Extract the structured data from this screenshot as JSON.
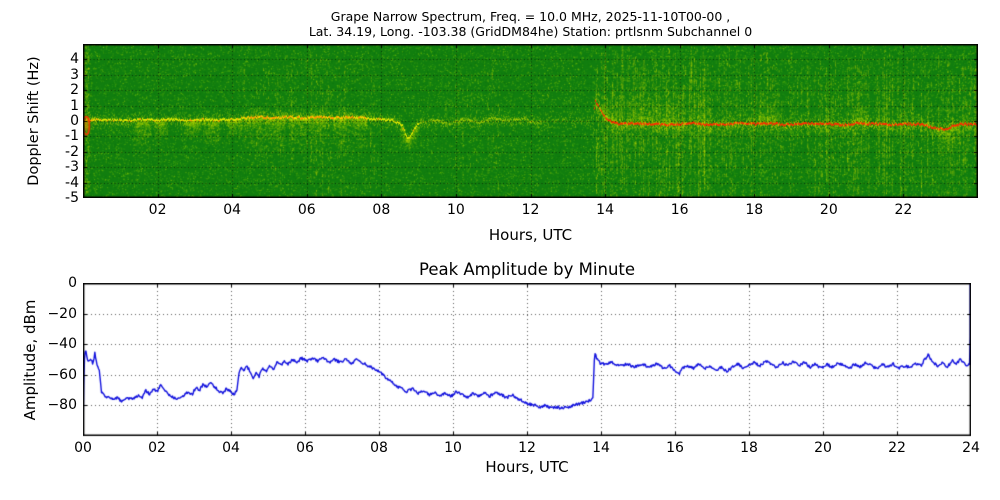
{
  "station_info": {
    "frequency": "10.0 MHz",
    "date": "2025-11-10T00-00",
    "lat": "34.19",
    "long": "-103.38",
    "grid": "DM84he",
    "station": "prtlsnm",
    "subchannel": "0"
  },
  "colors": {
    "figure_bg": "#ffffff",
    "spectrogram_bg": "#117e0f",
    "trace_yellow": "#e8ee00",
    "trace_orange": "#ff9500",
    "trace_red": "#ff2a00",
    "amplitude_line": "#1111dd",
    "grid": "#000000",
    "text": "#000000"
  },
  "chart_data": [
    {
      "type": "heatmap",
      "title": "Grape Narrow Spectrum, Freq. = 10.0 MHz, 2025-11-10T00-00 ,",
      "subtitle": "Lat. 34.19, Long. -103.38 (GridDM84he) Station: prtlsnm Subchannel 0",
      "xlabel": "Hours, UTC",
      "ylabel": "Doppler Shift (Hz)",
      "xlim": [
        0,
        24
      ],
      "ylim": [
        -5,
        5
      ],
      "xtick_values": [
        2,
        4,
        6,
        8,
        10,
        12,
        14,
        16,
        18,
        20,
        22
      ],
      "xtick_labels": [
        "02",
        "04",
        "06",
        "08",
        "10",
        "12",
        "14",
        "16",
        "18",
        "20",
        "22"
      ],
      "ytick_values": [
        4,
        3,
        2,
        1,
        0,
        -1,
        -2,
        -3,
        -4,
        -5
      ],
      "ytick_labels": [
        "4",
        "3",
        "2",
        "1",
        "0",
        "-1",
        "-2",
        "-3",
        "-4",
        "-5"
      ],
      "grid": "dotted",
      "legend": "none",
      "style": {
        "bg": "#117e0f",
        "speckle": [
          "#0c700c",
          "#1d8a10",
          "#2f9a12",
          "#47ab0e",
          "#64bc08",
          "#8ccb04"
        ]
      },
      "carrier_trace": [
        [
          0.0,
          0.0
        ],
        [
          0.3,
          0.1
        ],
        [
          0.8,
          0.05
        ],
        [
          1.2,
          0.0
        ],
        [
          1.6,
          0.1
        ],
        [
          2.0,
          0.05
        ],
        [
          2.4,
          0.1
        ],
        [
          2.8,
          0.0
        ],
        [
          3.2,
          0.1
        ],
        [
          3.6,
          0.05
        ],
        [
          4.0,
          0.1
        ],
        [
          4.3,
          0.2
        ],
        [
          4.7,
          0.25
        ],
        [
          5.1,
          0.2
        ],
        [
          5.5,
          0.25
        ],
        [
          5.9,
          0.2
        ],
        [
          6.3,
          0.25
        ],
        [
          6.7,
          0.2
        ],
        [
          7.1,
          0.25
        ],
        [
          7.5,
          0.2
        ],
        [
          7.9,
          0.1
        ],
        [
          8.3,
          0.05
        ],
        [
          8.55,
          -0.3
        ],
        [
          8.7,
          -1.2
        ],
        [
          8.85,
          -0.6
        ],
        [
          9.0,
          -0.1
        ],
        [
          9.4,
          0.1
        ],
        [
          9.8,
          -0.2
        ],
        [
          10.2,
          0.1
        ],
        [
          10.6,
          -0.1
        ],
        [
          11.0,
          0.2
        ],
        [
          11.4,
          0.0
        ],
        [
          11.8,
          0.15
        ],
        [
          12.1,
          -0.1
        ],
        [
          12.5,
          0.0
        ],
        [
          13.0,
          0.05
        ],
        [
          13.5,
          0.0
        ],
        [
          13.68,
          0.1
        ],
        [
          13.72,
          1.35
        ],
        [
          13.85,
          0.75
        ],
        [
          14.0,
          0.2
        ],
        [
          14.15,
          -0.05
        ],
        [
          14.35,
          -0.2
        ],
        [
          14.8,
          -0.15
        ],
        [
          15.2,
          -0.2
        ],
        [
          15.6,
          -0.25
        ],
        [
          16.0,
          -0.2
        ],
        [
          16.4,
          -0.15
        ],
        [
          16.8,
          -0.25
        ],
        [
          17.2,
          -0.2
        ],
        [
          17.6,
          -0.15
        ],
        [
          18.0,
          -0.2
        ],
        [
          18.4,
          -0.15
        ],
        [
          18.8,
          -0.25
        ],
        [
          19.2,
          -0.2
        ],
        [
          19.6,
          -0.15
        ],
        [
          20.0,
          -0.2
        ],
        [
          20.4,
          -0.25
        ],
        [
          20.8,
          -0.15
        ],
        [
          21.2,
          -0.2
        ],
        [
          21.6,
          -0.25
        ],
        [
          22.0,
          -0.2
        ],
        [
          22.4,
          -0.2
        ],
        [
          22.8,
          -0.45
        ],
        [
          23.1,
          -0.55
        ],
        [
          23.35,
          -0.3
        ],
        [
          23.6,
          -0.2
        ],
        [
          24.0,
          -0.25
        ]
      ],
      "segments": [
        {
          "from": 0.0,
          "to": 0.35,
          "core": "orange",
          "halo": 0.7
        },
        {
          "from": 0.35,
          "to": 4.3,
          "core": "yellow",
          "halo": 0.5
        },
        {
          "from": 4.3,
          "to": 7.6,
          "core": "orange",
          "halo": 0.85
        },
        {
          "from": 7.6,
          "to": 9.0,
          "core": "yellow",
          "halo": 0.5
        },
        {
          "from": 9.0,
          "to": 12.3,
          "core": "faint",
          "halo": 0.4
        },
        {
          "from": 12.3,
          "to": 13.68,
          "core": "veryfaint",
          "halo": 0.15
        },
        {
          "from": 13.68,
          "to": 24.0,
          "core": "red",
          "halo": 0.75
        }
      ],
      "plumes_down": [
        [
          1.35,
          1.8,
          -2.6
        ],
        [
          1.9,
          2.25,
          -1.4
        ],
        [
          2.7,
          3.15,
          -1.3
        ],
        [
          3.2,
          3.65,
          -1.7
        ],
        [
          3.85,
          4.25,
          -1.2
        ],
        [
          4.3,
          4.8,
          -2.9
        ],
        [
          4.85,
          5.4,
          -2.2
        ],
        [
          5.5,
          6.0,
          -2.4
        ],
        [
          6.05,
          6.5,
          -2.0
        ],
        [
          6.7,
          7.15,
          -2.6
        ],
        [
          7.2,
          7.6,
          -2.1
        ],
        [
          8.5,
          8.95,
          -1.9
        ],
        [
          22.9,
          23.5,
          -3.4
        ]
      ],
      "blobs_up": [
        [
          13.9,
          14.3,
          1.2
        ],
        [
          14.6,
          15.45,
          2.9
        ],
        [
          15.5,
          15.85,
          1.6
        ],
        [
          18.1,
          18.6,
          1.9
        ],
        [
          20.7,
          21.05,
          1.3
        ]
      ],
      "stripe_bands": [
        {
          "from": 4.3,
          "to": 7.9,
          "count": 60,
          "strength": 0.22
        },
        {
          "from": 9.7,
          "to": 11.2,
          "count": 25,
          "strength": 0.18
        },
        {
          "from": 12.3,
          "to": 13.1,
          "count": 8,
          "strength": 0.12
        },
        {
          "from": 13.65,
          "to": 16.7,
          "count": 150,
          "strength": 0.45
        },
        {
          "from": 16.7,
          "to": 19.2,
          "count": 90,
          "strength": 0.3
        },
        {
          "from": 19.2,
          "to": 24.0,
          "count": 150,
          "strength": 0.4
        }
      ],
      "start_blob": {
        "hour": 0.09,
        "hz": -0.3
      }
    },
    {
      "type": "line",
      "title": "Peak Amplitude by Minute",
      "xlabel": "Hours, UTC",
      "ylabel": "Amplitude, dBm",
      "xlim": [
        0,
        24
      ],
      "ylim": [
        -100,
        0
      ],
      "xtick_values": [
        0,
        2,
        4,
        6,
        8,
        10,
        12,
        14,
        16,
        18,
        20,
        22,
        24
      ],
      "xtick_labels": [
        "00",
        "02",
        "04",
        "06",
        "08",
        "10",
        "12",
        "14",
        "16",
        "18",
        "20",
        "22",
        "24"
      ],
      "ytick_values": [
        0,
        -20,
        -40,
        -60,
        -80
      ],
      "ytick_labels": [
        "0",
        "−20",
        "−40",
        "−60",
        "−80"
      ],
      "grid": "dotted",
      "legend": "none",
      "line_color": "#1111dd",
      "points": [
        [
          0.0,
          -97
        ],
        [
          0.03,
          -52
        ],
        [
          0.07,
          -43
        ],
        [
          0.13,
          -52
        ],
        [
          0.2,
          -49
        ],
        [
          0.27,
          -53
        ],
        [
          0.32,
          -46
        ],
        [
          0.38,
          -54
        ],
        [
          0.44,
          -57
        ],
        [
          0.5,
          -71
        ],
        [
          0.6,
          -74
        ],
        [
          0.75,
          -76
        ],
        [
          0.9,
          -75
        ],
        [
          1.05,
          -77
        ],
        [
          1.2,
          -75
        ],
        [
          1.35,
          -76
        ],
        [
          1.5,
          -73
        ],
        [
          1.6,
          -75
        ],
        [
          1.7,
          -70
        ],
        [
          1.8,
          -73
        ],
        [
          1.9,
          -69
        ],
        [
          2.0,
          -71
        ],
        [
          2.1,
          -67
        ],
        [
          2.2,
          -70
        ],
        [
          2.3,
          -73
        ],
        [
          2.45,
          -75
        ],
        [
          2.6,
          -76
        ],
        [
          2.75,
          -73
        ],
        [
          2.85,
          -71
        ],
        [
          2.95,
          -73
        ],
        [
          3.05,
          -68
        ],
        [
          3.15,
          -70
        ],
        [
          3.25,
          -66
        ],
        [
          3.35,
          -68
        ],
        [
          3.45,
          -65
        ],
        [
          3.55,
          -68
        ],
        [
          3.65,
          -70
        ],
        [
          3.78,
          -72
        ],
        [
          3.88,
          -69
        ],
        [
          3.98,
          -71
        ],
        [
          4.08,
          -73
        ],
        [
          4.16,
          -70
        ],
        [
          4.22,
          -58
        ],
        [
          4.28,
          -55
        ],
        [
          4.35,
          -58
        ],
        [
          4.42,
          -54
        ],
        [
          4.5,
          -57
        ],
        [
          4.6,
          -63
        ],
        [
          4.68,
          -58
        ],
        [
          4.76,
          -61
        ],
        [
          4.85,
          -56
        ],
        [
          4.95,
          -58
        ],
        [
          5.05,
          -54
        ],
        [
          5.15,
          -56
        ],
        [
          5.25,
          -52
        ],
        [
          5.35,
          -54
        ],
        [
          5.45,
          -51
        ],
        [
          5.55,
          -53
        ],
        [
          5.65,
          -50
        ],
        [
          5.78,
          -52
        ],
        [
          5.9,
          -49
        ],
        [
          6.05,
          -51
        ],
        [
          6.2,
          -49
        ],
        [
          6.35,
          -51
        ],
        [
          6.5,
          -49
        ],
        [
          6.65,
          -52
        ],
        [
          6.8,
          -50
        ],
        [
          6.95,
          -52
        ],
        [
          7.1,
          -50
        ],
        [
          7.25,
          -53
        ],
        [
          7.4,
          -50
        ],
        [
          7.55,
          -52
        ],
        [
          7.7,
          -54
        ],
        [
          7.85,
          -56
        ],
        [
          8.0,
          -58
        ],
        [
          8.15,
          -61
        ],
        [
          8.3,
          -64
        ],
        [
          8.45,
          -67
        ],
        [
          8.6,
          -69
        ],
        [
          8.75,
          -71
        ],
        [
          8.9,
          -69
        ],
        [
          9.05,
          -72
        ],
        [
          9.2,
          -70
        ],
        [
          9.35,
          -73
        ],
        [
          9.5,
          -71
        ],
        [
          9.65,
          -74
        ],
        [
          9.8,
          -72
        ],
        [
          9.95,
          -74
        ],
        [
          10.1,
          -71
        ],
        [
          10.25,
          -73
        ],
        [
          10.4,
          -75
        ],
        [
          10.55,
          -72
        ],
        [
          10.7,
          -74
        ],
        [
          10.85,
          -72
        ],
        [
          11.0,
          -74
        ],
        [
          11.15,
          -71
        ],
        [
          11.3,
          -73
        ],
        [
          11.45,
          -75
        ],
        [
          11.6,
          -73
        ],
        [
          11.75,
          -76
        ],
        [
          11.9,
          -77
        ],
        [
          12.05,
          -79
        ],
        [
          12.2,
          -80
        ],
        [
          12.35,
          -81
        ],
        [
          12.5,
          -80
        ],
        [
          12.65,
          -82
        ],
        [
          12.8,
          -81
        ],
        [
          12.95,
          -82
        ],
        [
          13.1,
          -81
        ],
        [
          13.25,
          -80
        ],
        [
          13.4,
          -79
        ],
        [
          13.55,
          -78
        ],
        [
          13.68,
          -77
        ],
        [
          13.78,
          -75
        ],
        [
          13.83,
          -45
        ],
        [
          13.88,
          -49
        ],
        [
          13.95,
          -52
        ],
        [
          14.1,
          -53
        ],
        [
          14.3,
          -52
        ],
        [
          14.5,
          -54
        ],
        [
          14.7,
          -53
        ],
        [
          14.9,
          -55
        ],
        [
          15.1,
          -53
        ],
        [
          15.3,
          -55
        ],
        [
          15.5,
          -53
        ],
        [
          15.7,
          -56
        ],
        [
          15.85,
          -54
        ],
        [
          16.0,
          -57
        ],
        [
          16.1,
          -60
        ],
        [
          16.2,
          -56
        ],
        [
          16.35,
          -54
        ],
        [
          16.5,
          -56
        ],
        [
          16.65,
          -53
        ],
        [
          16.8,
          -56
        ],
        [
          16.95,
          -54
        ],
        [
          17.1,
          -57
        ],
        [
          17.25,
          -55
        ],
        [
          17.4,
          -58
        ],
        [
          17.55,
          -55
        ],
        [
          17.7,
          -53
        ],
        [
          17.85,
          -56
        ],
        [
          18.0,
          -54
        ],
        [
          18.15,
          -52
        ],
        [
          18.3,
          -54
        ],
        [
          18.45,
          -51
        ],
        [
          18.6,
          -53
        ],
        [
          18.75,
          -55
        ],
        [
          18.9,
          -52
        ],
        [
          19.05,
          -54
        ],
        [
          19.2,
          -51
        ],
        [
          19.35,
          -54
        ],
        [
          19.5,
          -52
        ],
        [
          19.65,
          -55
        ],
        [
          19.8,
          -53
        ],
        [
          19.95,
          -56
        ],
        [
          20.1,
          -53
        ],
        [
          20.25,
          -55
        ],
        [
          20.4,
          -52
        ],
        [
          20.55,
          -54
        ],
        [
          20.7,
          -56
        ],
        [
          20.85,
          -53
        ],
        [
          21.0,
          -55
        ],
        [
          21.15,
          -52
        ],
        [
          21.3,
          -54
        ],
        [
          21.45,
          -56
        ],
        [
          21.6,
          -53
        ],
        [
          21.75,
          -55
        ],
        [
          21.9,
          -53
        ],
        [
          22.05,
          -56
        ],
        [
          22.2,
          -54
        ],
        [
          22.35,
          -55
        ],
        [
          22.5,
          -53
        ],
        [
          22.65,
          -54
        ],
        [
          22.75,
          -50
        ],
        [
          22.85,
          -47
        ],
        [
          22.95,
          -52
        ],
        [
          23.1,
          -54
        ],
        [
          23.25,
          -52
        ],
        [
          23.35,
          -55
        ],
        [
          23.5,
          -51
        ],
        [
          23.6,
          -53
        ],
        [
          23.7,
          -50
        ],
        [
          23.8,
          -52
        ],
        [
          23.9,
          -54
        ],
        [
          23.97,
          -53
        ],
        [
          24.0,
          0
        ]
      ]
    }
  ]
}
